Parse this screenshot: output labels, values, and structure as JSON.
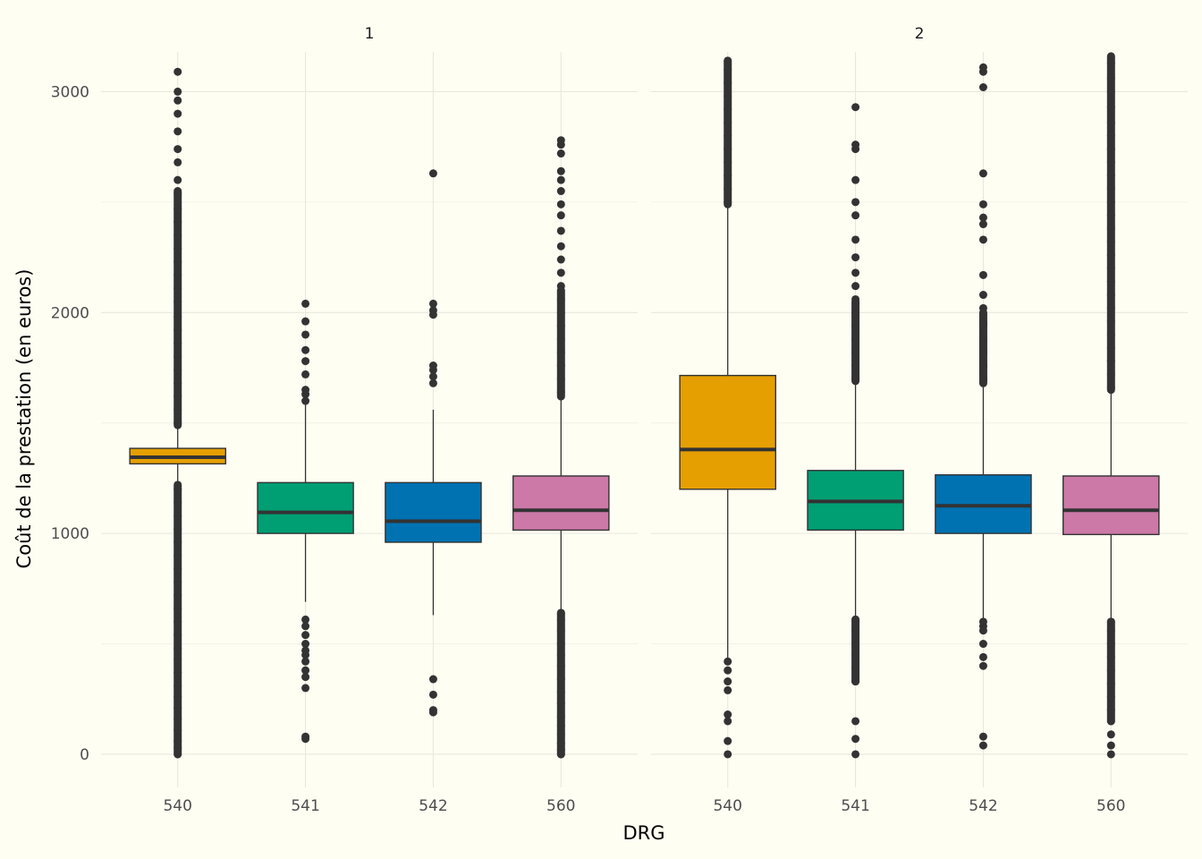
{
  "chart_data": {
    "type": "boxplot",
    "xlabel": "DRG",
    "ylabel": "Coût de la prestation (en euros)",
    "ylim": [
      -150,
      3180
    ],
    "yticks": [
      0,
      1000,
      2000,
      3000
    ],
    "ytick_labels": [
      "0",
      "1000",
      "2000",
      "3000"
    ],
    "categories": [
      "540",
      "541",
      "542",
      "560"
    ],
    "colors": {
      "540": "#e69f00",
      "541": "#009e73",
      "542": "#0072b2",
      "560": "#cc79a7"
    },
    "grid": true,
    "legend": "none",
    "facets": [
      {
        "label": "1",
        "boxes": [
          {
            "category": "540",
            "q1": 1315,
            "median": 1345,
            "q3": 1385,
            "whisker_low": 1220,
            "whisker_high": 1490,
            "outliers_low": [
              0,
              30,
              60,
              110,
              160,
              210,
              260,
              310,
              370,
              430,
              480,
              540,
              600,
              660,
              720,
              780,
              840,
              900,
              960,
              1020,
              1080,
              1140,
              1200
            ],
            "outliers_high": [
              1500,
              1560,
              1620,
              1680,
              1740,
              1800,
              1860,
              1920,
              1980,
              2050,
              2110,
              2170,
              2230,
              2290,
              2350,
              2410,
              2470,
              2540,
              2600,
              2680,
              2740,
              2820,
              2900,
              2960,
              3000,
              3090
            ],
            "dense_low": [
              [
                0,
                1220
              ]
            ],
            "dense_high": [
              [
                1490,
                2550
              ]
            ]
          },
          {
            "category": "541",
            "q1": 1000,
            "median": 1095,
            "q3": 1230,
            "whisker_low": 690,
            "whisker_high": 1590,
            "outliers_low": [
              70,
              80,
              300,
              350,
              380,
              420,
              450,
              470,
              500,
              540,
              580,
              610
            ],
            "outliers_high": [
              1600,
              1630,
              1650,
              1720,
              1780,
              1830,
              1900,
              1960,
              2040
            ],
            "dense_low": [],
            "dense_high": []
          },
          {
            "category": "542",
            "q1": 960,
            "median": 1055,
            "q3": 1230,
            "whisker_low": 630,
            "whisker_high": 1560,
            "outliers_low": [
              190,
              200,
              270,
              340
            ],
            "outliers_high": [
              1680,
              1710,
              1740,
              1760,
              1990,
              2010,
              2040,
              2630
            ],
            "dense_low": [],
            "dense_high": []
          },
          {
            "category": "560",
            "q1": 1015,
            "median": 1105,
            "q3": 1260,
            "whisker_low": 650,
            "whisker_high": 1620,
            "outliers_low": [
              0,
              20,
              50,
              90,
              130,
              170,
              230,
              280,
              340,
              400,
              450,
              500,
              560,
              610,
              640
            ],
            "outliers_high": [
              1640,
              1700,
              1760,
              1820,
              1880,
              1940,
              2000,
              2060,
              2120,
              2180,
              2240,
              2300,
              2370,
              2440,
              2490,
              2550,
              2600,
              2640,
              2720,
              2760,
              2780
            ],
            "dense_low": [
              [
                0,
                640
              ]
            ],
            "dense_high": [
              [
                1620,
                2100
              ]
            ]
          }
        ]
      },
      {
        "label": "2",
        "boxes": [
          {
            "category": "540",
            "q1": 1200,
            "median": 1380,
            "q3": 1715,
            "whisker_low": 420,
            "whisker_high": 2490,
            "outliers_low": [
              0,
              60,
              150,
              180,
              290,
              330,
              380,
              420
            ],
            "outliers_high": [
              2500,
              2560,
              2620,
              2680,
              2740,
              2800,
              2860,
              2920,
              2980,
              3040,
              3100,
              3140
            ],
            "dense_low": [],
            "dense_high": [
              [
                2490,
                3140
              ]
            ]
          },
          {
            "category": "541",
            "q1": 1015,
            "median": 1145,
            "q3": 1285,
            "whisker_low": 610,
            "whisker_high": 1690,
            "outliers_low": [
              0,
              70,
              150,
              330,
              390,
              450,
              500,
              560,
              610
            ],
            "outliers_high": [
              1700,
              1760,
              1820,
              1880,
              1940,
              2000,
              2060,
              2120,
              2180,
              2250,
              2330,
              2440,
              2500,
              2600,
              2740,
              2760,
              2930
            ],
            "dense_low": [
              [
                330,
                610
              ]
            ],
            "dense_high": [
              [
                1690,
                2050
              ]
            ]
          },
          {
            "category": "542",
            "q1": 1000,
            "median": 1125,
            "q3": 1265,
            "whisker_low": 600,
            "whisker_high": 1680,
            "outliers_low": [
              40,
              80,
              400,
              440,
              500,
              560,
              580,
              600
            ],
            "outliers_high": [
              1700,
              1760,
              1820,
              1880,
              1950,
              2020,
              2080,
              2170,
              2330,
              2400,
              2430,
              2490,
              2630,
              3020,
              3090,
              3110
            ],
            "dense_low": [],
            "dense_high": [
              [
                1680,
                2000
              ]
            ]
          },
          {
            "category": "560",
            "q1": 995,
            "median": 1105,
            "q3": 1260,
            "whisker_low": 600,
            "whisker_high": 1650,
            "outliers_low": [
              0,
              40,
              90,
              150,
              200,
              260,
              320,
              380,
              440,
              500,
              560,
              600
            ],
            "outliers_high": [
              1660,
              1720,
              1780,
              1840,
              1900,
              1960,
              2020,
              2080,
              2140,
              2200,
              2260,
              2320,
              2380,
              2440,
              2500,
              2560,
              2620,
              2680,
              2740,
              2800,
              2860,
              2930,
              3000,
              3060,
              3130
            ],
            "dense_low": [
              [
                150,
                600
              ]
            ],
            "dense_high": [
              [
                1650,
                3160
              ]
            ]
          }
        ]
      }
    ]
  }
}
